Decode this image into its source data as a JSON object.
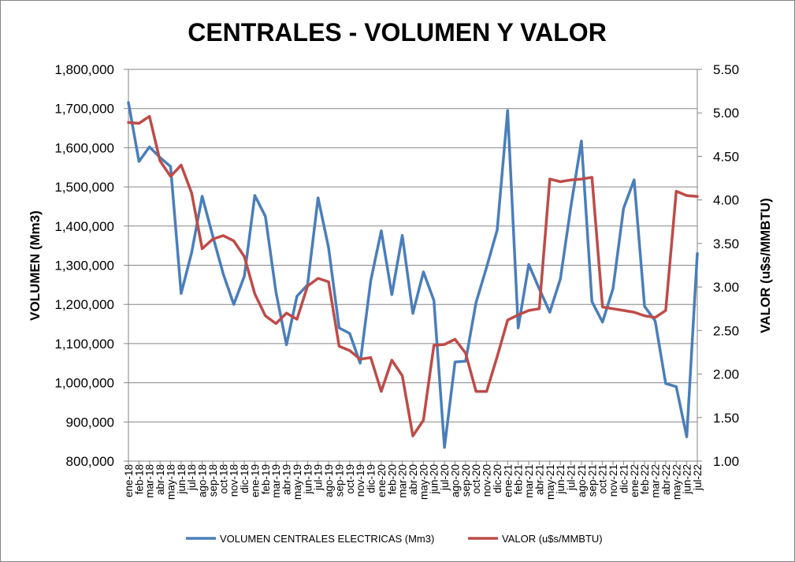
{
  "chart_data": {
    "type": "line",
    "title": "CENTRALES - VOLUMEN Y VALOR",
    "ylabel": "VOLUMEN (Mm3)",
    "y2label": "VALOR (u$s/MMBTU)",
    "ylim": [
      800000,
      1800000
    ],
    "y2lim": [
      1.0,
      5.5
    ],
    "yticks": [
      "800,000",
      "900,000",
      "1,000,000",
      "1,100,000",
      "1,200,000",
      "1,300,000",
      "1,400,000",
      "1,500,000",
      "1,600,000",
      "1,700,000",
      "1,800,000"
    ],
    "y2ticks": [
      "1.00",
      "1.50",
      "2.00",
      "2.50",
      "3.00",
      "3.50",
      "4.00",
      "4.50",
      "5.00",
      "5.50"
    ],
    "grid": "horizontal",
    "legend_position": "bottom",
    "categories": [
      "ene-18",
      "feb-18",
      "mar-18",
      "abr-18",
      "may-18",
      "jun-18",
      "jul-18",
      "ago-18",
      "sep-18",
      "oct-18",
      "nov-18",
      "dic-18",
      "ene-19",
      "feb-19",
      "mar-19",
      "abr-19",
      "may-19",
      "jun-19",
      "jul-19",
      "ago-19",
      "sep-19",
      "oct-19",
      "nov-19",
      "dic-19",
      "ene-20",
      "feb-20",
      "mar-20",
      "abr-20",
      "may-20",
      "jun-20",
      "jul-20",
      "ago-20",
      "sep-20",
      "oct-20",
      "nov-20",
      "dic-20",
      "ene-21",
      "feb-21",
      "mar-21",
      "abr-21",
      "may-21",
      "jun-21",
      "jul-21",
      "ago-21",
      "sep-21",
      "oct-21",
      "nov-21",
      "dic-21",
      "ene-22",
      "feb-22",
      "mar-22",
      "abr-22",
      "may-22",
      "jun-22",
      "jul-22"
    ],
    "series": [
      {
        "name": "VOLUMEN CENTRALES ELECTRICAS (Mm3)",
        "axis": "left",
        "color": "#4a7ebb",
        "values": [
          1715000,
          1565000,
          1602000,
          1575000,
          1552000,
          1228000,
          1332000,
          1476000,
          1375000,
          1278000,
          1200000,
          1272000,
          1478000,
          1425000,
          1232000,
          1097000,
          1221000,
          1250000,
          1472000,
          1345000,
          1140000,
          1126000,
          1050000,
          1260000,
          1388000,
          1225000,
          1376000,
          1177000,
          1283000,
          1210000,
          835000,
          1053000,
          1055000,
          1205000,
          1295000,
          1390000,
          1695000,
          1140000,
          1302000,
          1240000,
          1180000,
          1265000,
          1450000,
          1617000,
          1207000,
          1155000,
          1240000,
          1445000,
          1518000,
          1195000,
          1158000,
          998000,
          990000,
          862000,
          1330000
        ]
      },
      {
        "name": "VALOR (u$s/MMBTU)",
        "axis": "right",
        "color": "#be4b48",
        "values": [
          4.89,
          4.88,
          4.96,
          4.45,
          4.27,
          4.4,
          4.08,
          3.44,
          3.55,
          3.59,
          3.53,
          3.35,
          2.92,
          2.67,
          2.58,
          2.7,
          2.63,
          3.01,
          3.1,
          3.06,
          2.32,
          2.27,
          2.17,
          2.19,
          1.8,
          2.16,
          1.98,
          1.29,
          1.47,
          2.33,
          2.34,
          2.4,
          2.24,
          1.8,
          1.8,
          2.2,
          2.62,
          2.68,
          2.73,
          2.75,
          4.24,
          4.21,
          4.23,
          4.24,
          4.26,
          2.77,
          2.75,
          2.73,
          2.71,
          2.67,
          2.65,
          2.73,
          4.1,
          4.05,
          4.04
        ]
      }
    ]
  }
}
